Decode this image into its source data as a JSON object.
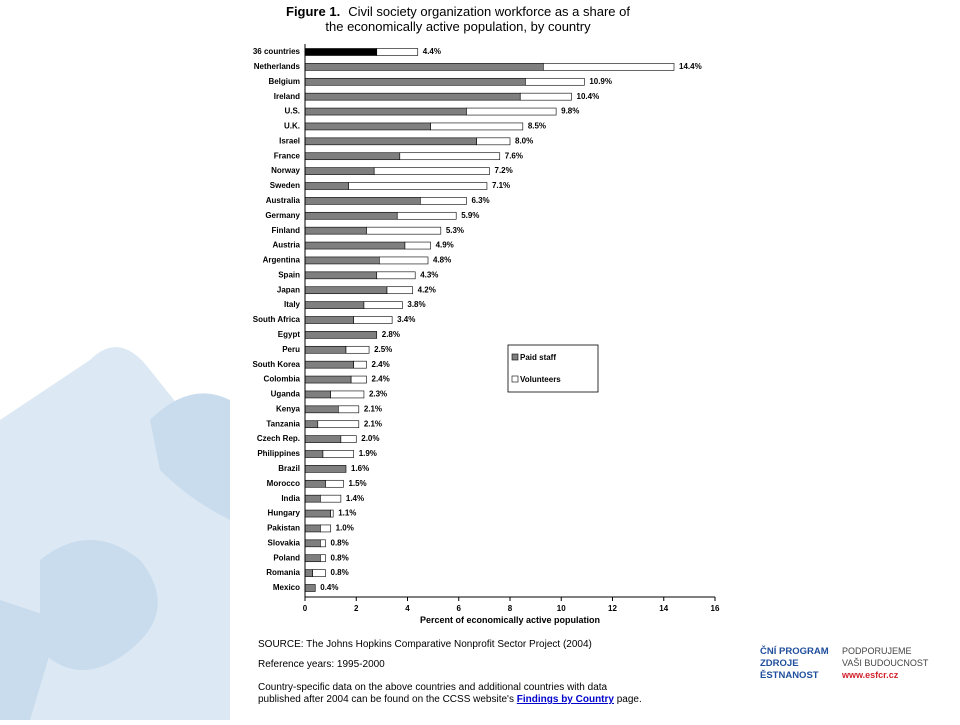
{
  "chart_data": {
    "type": "stacked_barh",
    "title_label": "Figure 1.",
    "title": [
      "Civil society organization workforce as a share of",
      "the economically active population, by country"
    ],
    "categories": [
      "36 countries",
      "Netherlands",
      "Belgium",
      "Ireland",
      "U.S.",
      "U.K.",
      "Israel",
      "France",
      "Norway",
      "Sweden",
      "Australia",
      "Germany",
      "Finland",
      "Austria",
      "Argentina",
      "Spain",
      "Japan",
      "Italy",
      "South Africa",
      "Egypt",
      "Peru",
      "South Korea",
      "Colombia",
      "Uganda",
      "Kenya",
      "Tanzania",
      "Czech Rep.",
      "Philippines",
      "Brazil",
      "Morocco",
      "India",
      "Hungary",
      "Pakistan",
      "Slovakia",
      "Poland",
      "Romania",
      "Mexico"
    ],
    "series": [
      {
        "name": "Paid staff",
        "color": "#7f7f7f",
        "colors": [
          "#000000",
          "#7f7f7f",
          "#7f7f7f",
          "#7f7f7f",
          "#7f7f7f",
          "#7f7f7f",
          "#7f7f7f",
          "#7f7f7f",
          "#7f7f7f",
          "#7f7f7f",
          "#7f7f7f",
          "#7f7f7f",
          "#7f7f7f",
          "#7f7f7f",
          "#7f7f7f",
          "#7f7f7f",
          "#7f7f7f",
          "#7f7f7f",
          "#7f7f7f",
          "#7f7f7f",
          "#7f7f7f",
          "#7f7f7f",
          "#7f7f7f",
          "#7f7f7f",
          "#7f7f7f",
          "#7f7f7f",
          "#7f7f7f",
          "#7f7f7f",
          "#7f7f7f",
          "#7f7f7f",
          "#7f7f7f",
          "#7f7f7f",
          "#7f7f7f",
          "#7f7f7f",
          "#7f7f7f",
          "#7f7f7f",
          "#7f7f7f"
        ],
        "values": [
          2.8,
          9.3,
          8.6,
          8.4,
          6.3,
          4.9,
          6.7,
          3.7,
          2.7,
          1.7,
          4.5,
          3.6,
          2.4,
          3.9,
          2.9,
          2.8,
          3.2,
          2.3,
          1.9,
          2.8,
          1.6,
          1.9,
          1.8,
          1.0,
          1.3,
          0.5,
          1.4,
          0.7,
          1.6,
          0.8,
          0.6,
          1.0,
          0.6,
          0.6,
          0.6,
          0.3,
          0.4
        ]
      },
      {
        "name": "Volunteers",
        "color": "#ffffff",
        "values": [
          1.6,
          5.1,
          2.3,
          2.0,
          3.5,
          3.6,
          1.3,
          3.9,
          4.5,
          5.4,
          1.8,
          2.3,
          2.9,
          1.0,
          1.9,
          1.5,
          1.0,
          1.5,
          1.5,
          0.0,
          0.9,
          0.5,
          0.6,
          1.3,
          0.8,
          1.6,
          0.6,
          1.2,
          0.0,
          0.7,
          0.8,
          0.1,
          0.4,
          0.2,
          0.2,
          0.5,
          0.0
        ]
      }
    ],
    "totals": [
      4.4,
      14.4,
      10.9,
      10.4,
      9.8,
      8.5,
      8.0,
      7.6,
      7.2,
      7.1,
      6.3,
      5.9,
      5.3,
      4.9,
      4.8,
      4.3,
      4.2,
      3.8,
      3.4,
      2.8,
      2.5,
      2.4,
      2.4,
      2.3,
      2.1,
      2.1,
      2.0,
      1.9,
      1.6,
      1.5,
      1.4,
      1.1,
      1.0,
      0.8,
      0.8,
      0.8,
      0.4
    ],
    "total_labels": [
      "4.4%",
      "14.4%",
      "10.9%",
      "10.4%",
      "9.8%",
      "8.5%",
      "8.0%",
      "7.6%",
      "7.2%",
      "7.1%",
      "6.3%",
      "5.9%",
      "5.3%",
      "4.9%",
      "4.8%",
      "4.3%",
      "4.2%",
      "3.8%",
      "3.4%",
      "2.8%",
      "2.5%",
      "2.4%",
      "2.4%",
      "2.3%",
      "2.1%",
      "2.1%",
      "2.0%",
      "1.9%",
      "1.6%",
      "1.5%",
      "1.4%",
      "1.1%",
      "1.0%",
      "0.8%",
      "0.8%",
      "0.8%",
      "0.4%"
    ],
    "xlim": [
      0,
      16
    ],
    "xticks": [
      0,
      2,
      4,
      6,
      8,
      10,
      12,
      14,
      16
    ],
    "xlabel": "Percent of economically active population"
  },
  "notes": {
    "source": "SOURCE: The Johns Hopkins Comparative Nonprofit Sector Project (2004)",
    "reference": "Reference years: 1995-2000",
    "details": [
      "Country-specific data on the above countries and additional countries with data",
      "published after 2004 can be found on the CCSS website's "
    ],
    "link": "Findings by Country",
    "after_link": " page."
  },
  "logo": {
    "left": [
      "ČNÍ PROGRAM",
      " ZDROJE",
      "ĚSTNANOST"
    ],
    "right": [
      "PODPORUJEME",
      "VAŠI BUDOUCNOST",
      "www.esfcr.cz"
    ]
  }
}
